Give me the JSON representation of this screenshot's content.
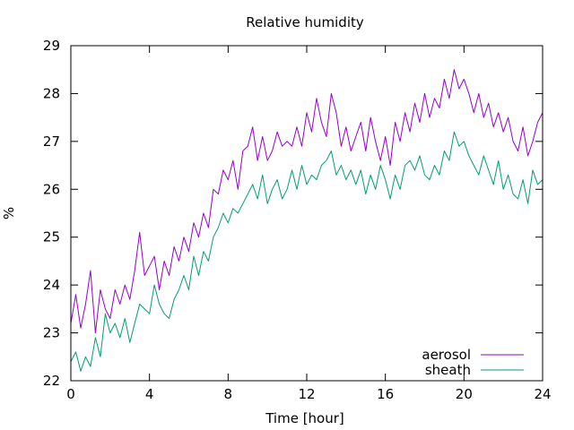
{
  "chart_data": {
    "type": "line",
    "title": "Relative humidity",
    "xlabel": "Time [hour]",
    "ylabel": "%",
    "xlim": [
      0,
      24
    ],
    "ylim": [
      22,
      29
    ],
    "xticks": [
      0,
      4,
      8,
      12,
      16,
      20,
      24
    ],
    "yticks": [
      22,
      23,
      24,
      25,
      26,
      27,
      28,
      29
    ],
    "grid": false,
    "legend": {
      "position": "bottom-right"
    },
    "series": [
      {
        "name": "aerosol",
        "color": "#9400d3",
        "x": [
          0,
          0.25,
          0.5,
          0.75,
          1,
          1.25,
          1.5,
          1.75,
          2,
          2.25,
          2.5,
          2.75,
          3,
          3.25,
          3.5,
          3.75,
          4,
          4.25,
          4.5,
          4.75,
          5,
          5.25,
          5.5,
          5.75,
          6,
          6.25,
          6.5,
          6.75,
          7,
          7.25,
          7.5,
          7.75,
          8,
          8.25,
          8.5,
          8.75,
          9,
          9.25,
          9.5,
          9.75,
          10,
          10.25,
          10.5,
          10.75,
          11,
          11.25,
          11.5,
          11.75,
          12,
          12.25,
          12.5,
          12.75,
          13,
          13.25,
          13.5,
          13.75,
          14,
          14.25,
          14.5,
          14.75,
          15,
          15.25,
          15.5,
          15.75,
          16,
          16.25,
          16.5,
          16.75,
          17,
          17.25,
          17.5,
          17.75,
          18,
          18.25,
          18.5,
          18.75,
          19,
          19.25,
          19.5,
          19.75,
          20,
          20.25,
          20.5,
          20.75,
          21,
          21.25,
          21.5,
          21.75,
          22,
          22.25,
          22.5,
          22.75,
          23,
          23.25,
          23.5,
          23.75,
          24
        ],
        "values": [
          23.2,
          23.8,
          23.1,
          23.6,
          24.3,
          23.0,
          23.9,
          23.5,
          23.3,
          23.9,
          23.6,
          24.0,
          23.7,
          24.3,
          25.1,
          24.2,
          24.4,
          24.6,
          23.9,
          24.5,
          24.2,
          24.8,
          24.5,
          25.0,
          24.7,
          25.3,
          25.0,
          25.5,
          25.2,
          26.0,
          25.9,
          26.4,
          26.2,
          26.6,
          26.0,
          26.8,
          26.9,
          27.3,
          26.6,
          27.1,
          26.6,
          26.8,
          27.2,
          26.9,
          27.0,
          26.9,
          27.3,
          26.9,
          27.6,
          27.2,
          27.9,
          27.4,
          27.1,
          28.0,
          27.6,
          26.9,
          27.3,
          26.8,
          27.1,
          27.4,
          26.8,
          27.5,
          27.0,
          26.6,
          27.1,
          26.5,
          27.4,
          27.0,
          27.6,
          27.2,
          27.8,
          27.4,
          28.0,
          27.5,
          27.9,
          27.7,
          28.3,
          27.9,
          28.5,
          28.1,
          28.3,
          28.0,
          27.6,
          28.0,
          27.5,
          27.8,
          27.3,
          27.6,
          27.2,
          27.5,
          27.0,
          26.8,
          27.3,
          26.7,
          27.0,
          27.4,
          27.6
        ]
      },
      {
        "name": "sheath",
        "color": "#009e73",
        "x": [
          0,
          0.25,
          0.5,
          0.75,
          1,
          1.25,
          1.5,
          1.75,
          2,
          2.25,
          2.5,
          2.75,
          3,
          3.25,
          3.5,
          3.75,
          4,
          4.25,
          4.5,
          4.75,
          5,
          5.25,
          5.5,
          5.75,
          6,
          6.25,
          6.5,
          6.75,
          7,
          7.25,
          7.5,
          7.75,
          8,
          8.25,
          8.5,
          8.75,
          9,
          9.25,
          9.5,
          9.75,
          10,
          10.25,
          10.5,
          10.75,
          11,
          11.25,
          11.5,
          11.75,
          12,
          12.25,
          12.5,
          12.75,
          13,
          13.25,
          13.5,
          13.75,
          14,
          14.25,
          14.5,
          14.75,
          15,
          15.25,
          15.5,
          15.75,
          16,
          16.25,
          16.5,
          16.75,
          17,
          17.25,
          17.5,
          17.75,
          18,
          18.25,
          18.5,
          18.75,
          19,
          19.25,
          19.5,
          19.75,
          20,
          20.25,
          20.5,
          20.75,
          21,
          21.25,
          21.5,
          21.75,
          22,
          22.25,
          22.5,
          22.75,
          23,
          23.25,
          23.5,
          23.75,
          24
        ],
        "values": [
          22.4,
          22.6,
          22.2,
          22.5,
          22.3,
          22.9,
          22.5,
          23.4,
          23.0,
          23.2,
          22.9,
          23.3,
          22.8,
          23.2,
          23.6,
          23.5,
          23.4,
          24.0,
          23.6,
          23.4,
          23.3,
          23.7,
          23.9,
          24.2,
          23.9,
          24.6,
          24.2,
          24.7,
          24.5,
          25.0,
          25.2,
          25.5,
          25.3,
          25.6,
          25.5,
          25.7,
          25.9,
          26.1,
          25.8,
          26.3,
          25.7,
          26.0,
          26.2,
          25.8,
          26.0,
          26.4,
          26.0,
          26.5,
          26.1,
          26.3,
          26.2,
          26.5,
          26.6,
          26.8,
          26.3,
          26.5,
          26.2,
          26.4,
          26.1,
          26.4,
          25.9,
          26.3,
          26.0,
          26.5,
          26.2,
          25.8,
          26.3,
          26.0,
          26.5,
          26.6,
          26.4,
          26.7,
          26.3,
          26.2,
          26.5,
          26.3,
          26.8,
          26.6,
          27.2,
          26.9,
          27.0,
          26.7,
          26.5,
          26.3,
          26.7,
          26.4,
          26.1,
          26.6,
          26.0,
          26.3,
          25.9,
          25.8,
          26.2,
          25.7,
          26.4,
          26.1,
          26.2
        ]
      }
    ]
  }
}
